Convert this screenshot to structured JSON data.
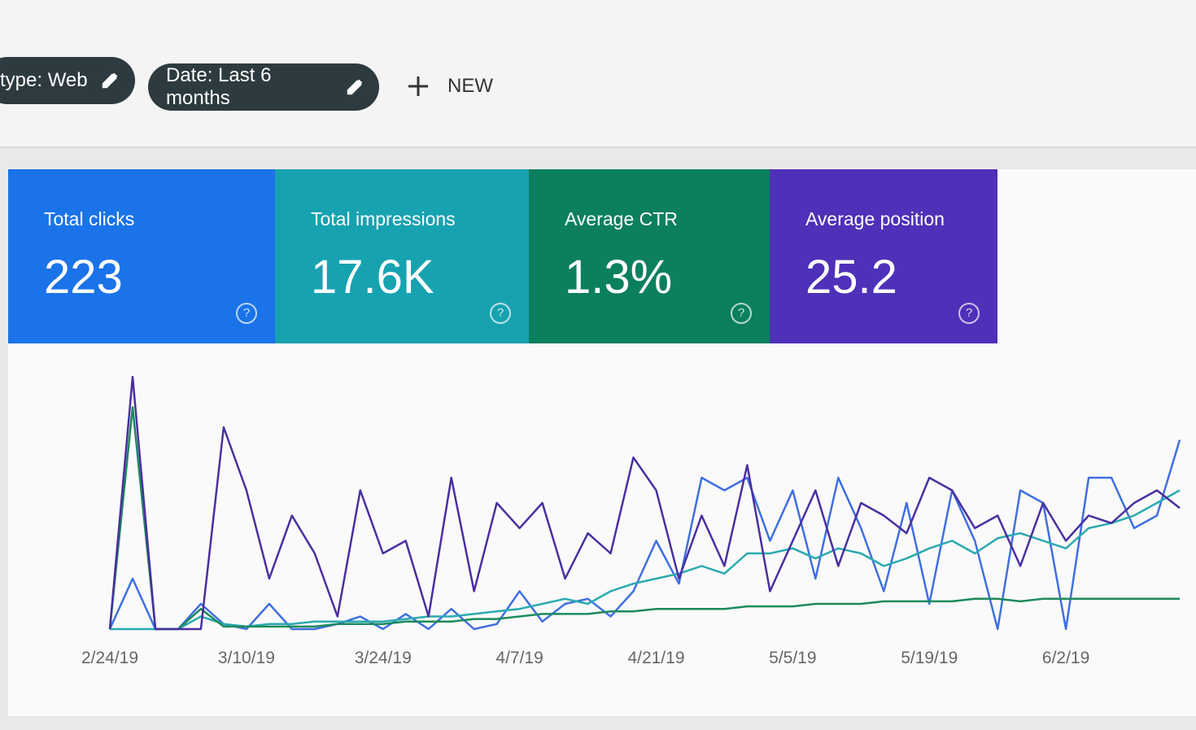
{
  "filters": {
    "chips": [
      "type: Web",
      "Date: Last 6 months"
    ],
    "new_button": "NEW"
  },
  "chart_data": {
    "type": "line",
    "categories": [
      "2/24/19",
      null,
      null,
      null,
      null,
      null,
      "3/10/19",
      null,
      null,
      null,
      null,
      null,
      "3/24/19",
      null,
      null,
      null,
      null,
      null,
      "4/7/19",
      null,
      null,
      null,
      null,
      null,
      "4/21/19",
      null,
      null,
      null,
      null,
      null,
      "5/5/19",
      null,
      null,
      null,
      null,
      null,
      "5/19/19",
      null,
      null,
      null,
      null,
      null,
      "6/2/19",
      null,
      null,
      null,
      null,
      null
    ],
    "ylim": [
      0,
      100
    ],
    "series": [
      {
        "name": "Total clicks",
        "total": {
          "value": 223,
          "label": "223"
        },
        "card_color": "#1a73e8",
        "color": "#3f6fe0",
        "values": [
          0,
          20,
          0,
          0,
          10,
          2,
          0,
          10,
          0,
          0,
          2,
          5,
          0,
          6,
          0,
          8,
          0,
          2,
          15,
          3,
          10,
          12,
          5,
          15,
          35,
          18,
          60,
          55,
          60,
          35,
          55,
          20,
          60,
          40,
          15,
          50,
          10,
          55,
          35,
          0,
          55,
          50,
          0,
          60,
          60,
          40,
          45,
          75
        ]
      },
      {
        "name": "Total impressions",
        "total": {
          "value": 17600,
          "label": "17.6K"
        },
        "card_color": "#17a2b0",
        "color": "#2aaab0",
        "values": [
          0,
          0,
          0,
          0,
          5,
          2,
          1,
          2,
          2,
          3,
          3,
          3,
          3,
          4,
          5,
          5,
          6,
          7,
          8,
          10,
          12,
          10,
          15,
          18,
          20,
          22,
          25,
          22,
          30,
          30,
          32,
          28,
          32,
          30,
          25,
          28,
          32,
          35,
          30,
          36,
          38,
          35,
          32,
          40,
          42,
          45,
          50,
          55
        ]
      },
      {
        "name": "Average CTR",
        "total": {
          "value": 1.3,
          "label": "1.3%"
        },
        "card_color": "#0b7f5e",
        "color": "#1c8a5c",
        "values": [
          0,
          88,
          0,
          0,
          8,
          1,
          1,
          1,
          1,
          1,
          2,
          2,
          2,
          3,
          3,
          3,
          4,
          4,
          5,
          6,
          6,
          6,
          7,
          7,
          8,
          8,
          8,
          8,
          9,
          9,
          9,
          10,
          10,
          10,
          11,
          11,
          11,
          11,
          12,
          12,
          11,
          12,
          12,
          12,
          12,
          12,
          12,
          12
        ]
      },
      {
        "name": "Average position",
        "total": {
          "value": 25.2,
          "label": "25.2"
        },
        "card_color": "#4f30b8",
        "color": "#4a2fa0",
        "values": [
          0,
          100,
          0,
          0,
          0,
          80,
          55,
          20,
          45,
          30,
          5,
          55,
          30,
          35,
          5,
          60,
          15,
          50,
          40,
          50,
          20,
          38,
          30,
          68,
          55,
          20,
          45,
          25,
          65,
          15,
          35,
          55,
          25,
          50,
          45,
          38,
          60,
          55,
          40,
          45,
          25,
          50,
          35,
          45,
          42,
          50,
          55,
          48
        ]
      }
    ]
  }
}
